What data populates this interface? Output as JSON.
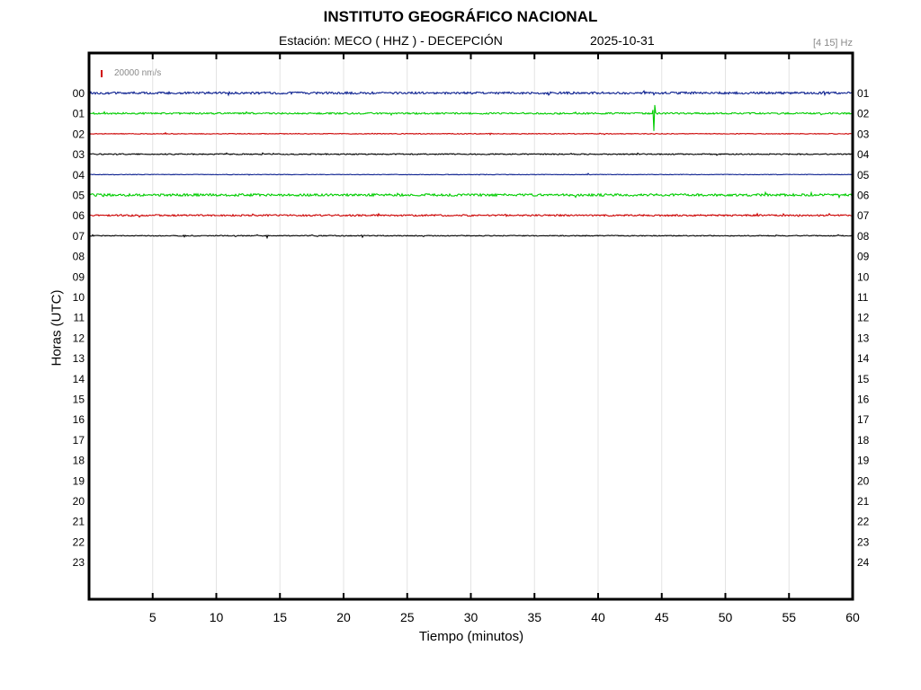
{
  "header": {
    "title": "INSTITUTO GEOGRÁFICO NACIONAL",
    "station": "Estación:  MECO ( HHZ ) - DECEPCIÓN",
    "date": "2025-10-31",
    "filter": "[4 15] Hz",
    "scale_label": "20000 nm/s"
  },
  "chart_data": {
    "type": "line",
    "title": "INSTITUTO GEOGRÁFICO NACIONAL",
    "xlabel": "Tiempo (minutos)",
    "ylabel": "Horas (UTC)",
    "xlim": [
      0,
      60
    ],
    "x_ticks": [
      "5",
      "10",
      "15",
      "20",
      "25",
      "30",
      "35",
      "40",
      "45",
      "50",
      "55",
      "60"
    ],
    "left_hours": [
      "00",
      "01",
      "02",
      "03",
      "04",
      "05",
      "06",
      "07",
      "08",
      "09",
      "10",
      "11",
      "12",
      "13",
      "14",
      "15",
      "16",
      "17",
      "18",
      "19",
      "20",
      "21",
      "22",
      "23"
    ],
    "right_hours": [
      "01",
      "02",
      "03",
      "04",
      "05",
      "06",
      "07",
      "08",
      "09",
      "10",
      "11",
      "12",
      "13",
      "14",
      "15",
      "16",
      "17",
      "18",
      "19",
      "20",
      "21",
      "22",
      "23",
      "24"
    ],
    "grid": true,
    "traces": [
      {
        "hour": "00",
        "color": "#0a1f8f",
        "noise": 1.2,
        "events": [
          {
            "minute": 44.4,
            "amp": 2
          },
          {
            "minute": 57.8,
            "amp": 3
          }
        ]
      },
      {
        "hour": "01",
        "color": "#00cc00",
        "noise": 0.9,
        "events": [
          {
            "minute": 44.4,
            "amp": 28
          }
        ]
      },
      {
        "hour": "02",
        "color": "#cc0000",
        "noise": 0.4,
        "events": [
          {
            "minute": 6.0,
            "amp": 1.5
          },
          {
            "minute": 31.5,
            "amp": 1.5
          }
        ]
      },
      {
        "hour": "03",
        "color": "#000000",
        "noise": 0.6,
        "events": []
      },
      {
        "hour": "04",
        "color": "#0a1f8f",
        "noise": 0.3,
        "events": [
          {
            "minute": 39.2,
            "amp": 1.5
          }
        ]
      },
      {
        "hour": "05",
        "color": "#00cc00",
        "noise": 1.3,
        "events": []
      },
      {
        "hour": "06",
        "color": "#cc0000",
        "noise": 0.9,
        "events": [
          {
            "minute": 52.5,
            "amp": 2.5
          }
        ]
      },
      {
        "hour": "07",
        "color": "#000000",
        "noise": 0.5,
        "events": [
          {
            "minute": 7.5,
            "amp": 2
          },
          {
            "minute": 14.0,
            "amp": 2
          },
          {
            "minute": 21.5,
            "amp": 2
          }
        ]
      }
    ]
  }
}
